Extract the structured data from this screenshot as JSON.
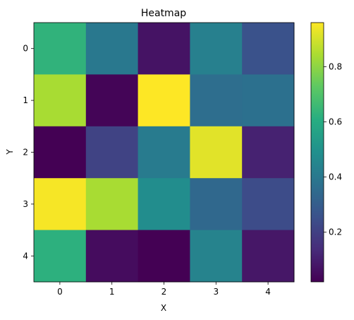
{
  "chart_data": {
    "type": "heatmap",
    "title": "Heatmap",
    "xlabel": "X",
    "ylabel": "Y",
    "x_ticks": [
      "0",
      "1",
      "2",
      "3",
      "4"
    ],
    "y_ticks": [
      "0",
      "1",
      "2",
      "3",
      "4"
    ],
    "values": [
      [
        0.63,
        0.4,
        0.07,
        0.43,
        0.26
      ],
      [
        0.84,
        0.03,
        0.96,
        0.36,
        0.37
      ],
      [
        0.02,
        0.21,
        0.41,
        0.92,
        0.11
      ],
      [
        0.95,
        0.84,
        0.48,
        0.34,
        0.24
      ],
      [
        0.62,
        0.05,
        0.02,
        0.44,
        0.08
      ]
    ],
    "colormap": "viridis",
    "vmin": 0.02,
    "vmax": 0.96,
    "colorbar_ticks": [
      "0.2",
      "0.4",
      "0.6",
      "0.8"
    ],
    "colorbar_tick_values": [
      0.2,
      0.4,
      0.6,
      0.8
    ],
    "grid": false
  }
}
